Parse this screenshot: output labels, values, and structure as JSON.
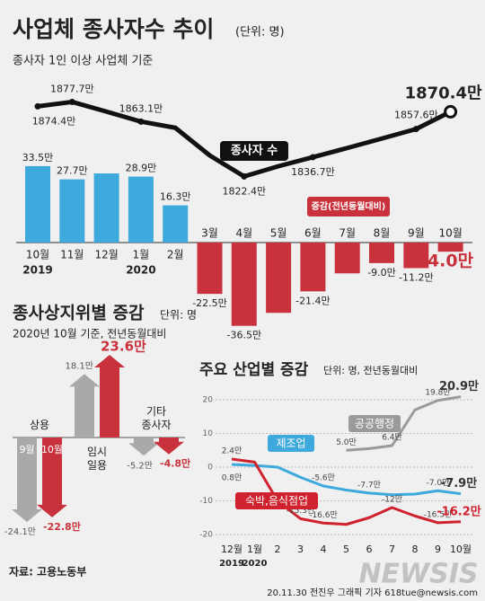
{
  "chart_data": [
    {
      "type": "bar-line",
      "title": "사업체 종사자수 추이",
      "unit": "(단위: 명)",
      "subtitle": "종사자 1인 이상 사업체 기준",
      "categories": [
        "10월",
        "11월",
        "12월",
        "1월",
        "2월",
        "3월",
        "4월",
        "5월",
        "6월",
        "7월",
        "8월",
        "9월",
        "10월"
      ],
      "year_labels": [
        "2019",
        "2020"
      ],
      "ylim": [
        -40,
        40
      ],
      "y2lim": [
        1800,
        1900
      ],
      "series": [
        {
          "name": "증감(전년동월대비)",
          "type": "bar",
          "color": "#3ea9dc",
          "negative_color": "#c9323c",
          "values": [
            33.5,
            27.7,
            30.3,
            28.9,
            16.3,
            -22.5,
            -36.5,
            -30.8,
            -21.4,
            -13.5,
            -9.0,
            -11.2,
            -4.0
          ],
          "value_labels": [
            "33.5만",
            "27.7만",
            null,
            "28.9만",
            "16.3만",
            "-22.5만",
            "-36.5만",
            null,
            "-21.4만",
            null,
            "-9.0만",
            "-11.2만",
            "-4.0만"
          ]
        },
        {
          "name": "종사자 수",
          "type": "line",
          "color": "#111111",
          "axis": "y2",
          "values": [
            1874.4,
            1877.7,
            1870.5,
            1863.1,
            1858.5,
            1838.0,
            1822.4,
            1830.0,
            1836.7,
            1843.5,
            1850.5,
            1857.6,
            1870.4
          ],
          "value_labels": [
            "1874.4만",
            "1877.7만",
            null,
            "1863.1만",
            null,
            null,
            "1822.4만",
            null,
            "1836.7만",
            null,
            null,
            "1857.6만",
            "1870.4만"
          ]
        }
      ]
    },
    {
      "type": "arrow-bar",
      "title": "종사상지위별 증감",
      "unit": "단위: 명",
      "subtitle": "2020년 10월 기준, 전년동월대비",
      "categories": [
        "상용",
        "임시 일용",
        "기타 종사자"
      ],
      "ylim": [
        -25,
        25
      ],
      "series": [
        {
          "name": "9월",
          "color": "#a9a9a9",
          "values": [
            -24.1,
            18.1,
            -5.2
          ],
          "value_labels": [
            "-24.1만",
            "18.1만",
            "-5.2만"
          ]
        },
        {
          "name": "10월",
          "color": "#c9323c",
          "values": [
            -22.8,
            23.6,
            -4.8
          ],
          "value_labels": [
            "-22.8만",
            "23.6만",
            "-4.8만"
          ]
        }
      ]
    },
    {
      "type": "line",
      "title": "주요 산업별 증감",
      "unit": "단위: 명, 전년동월대비",
      "categories": [
        "12월",
        "1월",
        "2",
        "3",
        "4",
        "5",
        "6",
        "7",
        "8",
        "9",
        "10월"
      ],
      "year_labels": [
        "2019",
        "2020"
      ],
      "ylim": [
        -22,
        24
      ],
      "yticks": [
        20,
        10,
        0,
        -10,
        -20
      ],
      "grid": true,
      "series": [
        {
          "name": "공공행정",
          "color": "#9a9a9a",
          "values": [
            null,
            null,
            null,
            null,
            null,
            5.0,
            5.5,
            6.4,
            17.0,
            19.8,
            20.9
          ],
          "value_labels": [
            null,
            null,
            null,
            null,
            null,
            "5.0만",
            null,
            "6.4만",
            null,
            "19.8만",
            "20.9만"
          ]
        },
        {
          "name": "제조업",
          "color": "#3ea9dc",
          "values": [
            0.8,
            0.5,
            0.0,
            -3.0,
            -5.6,
            -6.8,
            -7.7,
            -8.2,
            -8.0,
            -7.0,
            -7.9
          ],
          "value_labels": [
            "0.8만",
            null,
            null,
            null,
            "-5.6만",
            null,
            "-7.7만",
            null,
            null,
            "-7.0만",
            "-7.9만"
          ]
        },
        {
          "name": "숙박,음식점업",
          "color": "#d0222e",
          "values": [
            2.4,
            1.5,
            -10.0,
            -15.3,
            -16.6,
            -17.0,
            -15.0,
            -12.0,
            -14.5,
            -16.5,
            -16.2
          ],
          "value_labels": [
            "2.4만",
            null,
            null,
            "-15.3만",
            "-16.6만",
            null,
            null,
            "-12만",
            null,
            "-16.5만",
            "-16.2만"
          ]
        }
      ]
    }
  ],
  "source": "자료: 고용노동부",
  "credit": "20.11.30 전진우 그래픽 기자 618tue@newsis.com",
  "watermark": "NEWSIS"
}
